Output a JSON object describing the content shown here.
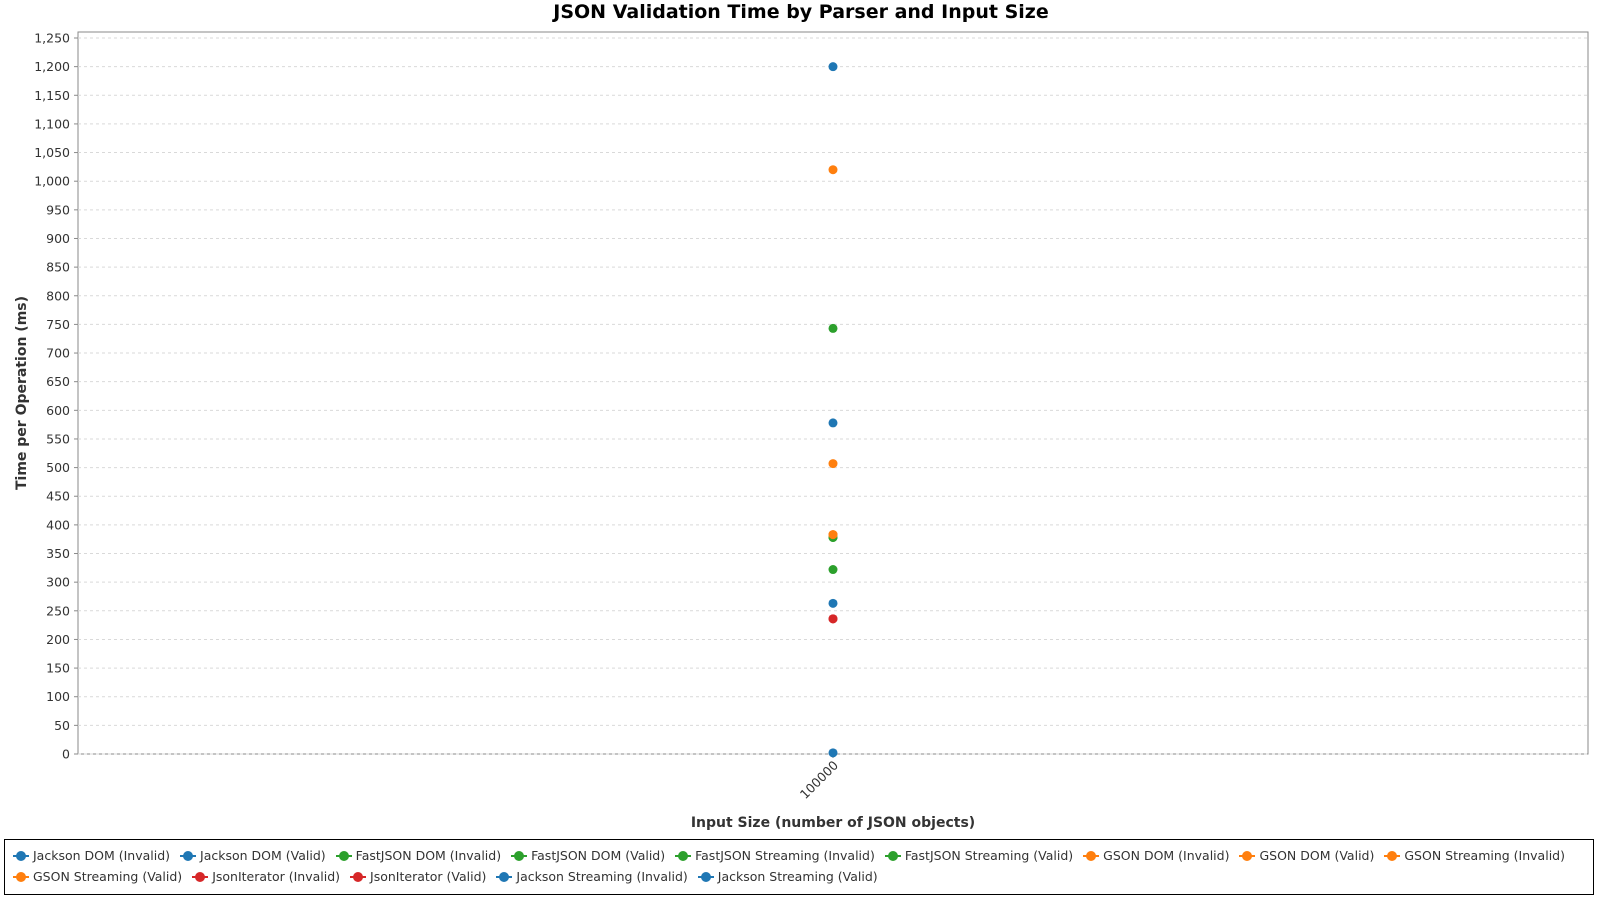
{
  "chart_data": {
    "type": "scatter",
    "title": "JSON Validation Time by Parser and Input Size",
    "xlabel": "Input Size (number of JSON objects)",
    "ylabel": "Time per Operation (ms)",
    "categories": [
      "100000"
    ],
    "ylim": [
      0,
      1250
    ],
    "ytick_step": 50,
    "grid": true,
    "legend_position": "bottom",
    "series": [
      {
        "name": "Jackson DOM (Invalid)",
        "color": "#1f77b4",
        "values": [
          1200
        ]
      },
      {
        "name": "Jackson DOM (Valid)",
        "color": "#1f77b4",
        "values": [
          578
        ]
      },
      {
        "name": "FastJSON DOM (Invalid)",
        "color": "#2ca02c",
        "values": [
          743
        ]
      },
      {
        "name": "FastJSON DOM (Valid)",
        "color": "#2ca02c",
        "values": [
          378
        ]
      },
      {
        "name": "FastJSON Streaming (Invalid)",
        "color": "#2ca02c",
        "values": [
          322
        ]
      },
      {
        "name": "FastJSON Streaming (Valid)",
        "color": "#2ca02c",
        "values": [
          378
        ]
      },
      {
        "name": "GSON DOM (Invalid)",
        "color": "#ff7f0e",
        "values": [
          1020
        ]
      },
      {
        "name": "GSON DOM (Valid)",
        "color": "#ff7f0e",
        "values": [
          507
        ]
      },
      {
        "name": "GSON Streaming (Invalid)",
        "color": "#ff7f0e",
        "values": [
          383
        ]
      },
      {
        "name": "GSON Streaming (Valid)",
        "color": "#ff7f0e",
        "values": [
          383
        ]
      },
      {
        "name": "JsonIterator (Invalid)",
        "color": "#d62728",
        "values": [
          236
        ]
      },
      {
        "name": "JsonIterator (Valid)",
        "color": "#d62728",
        "values": [
          236
        ]
      },
      {
        "name": "Jackson Streaming (Invalid)",
        "color": "#1f77b4",
        "values": [
          263
        ]
      },
      {
        "name": "Jackson Streaming (Valid)",
        "color": "#1f77b4",
        "values": [
          2
        ]
      }
    ]
  }
}
